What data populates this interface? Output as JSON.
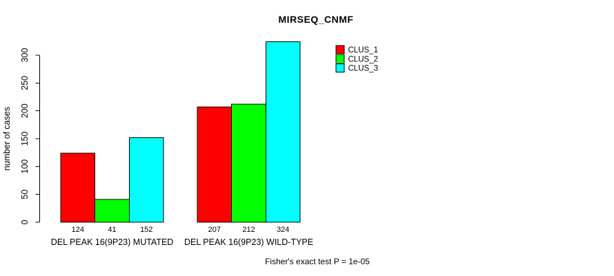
{
  "title": "MIRSEQ_CNMF",
  "chart_data": {
    "type": "bar",
    "title": "MIRSEQ_CNMF",
    "xlabel": "",
    "ylabel": "number of cases",
    "categories": [
      "DEL PEAK 16(9P23) MUTATED",
      "DEL PEAK 16(9P23) WILD-TYPE"
    ],
    "series": [
      {
        "name": "CLUS_1",
        "color": "#FF0000",
        "values": [
          124,
          207
        ]
      },
      {
        "name": "CLUS_2",
        "color": "#00FF00",
        "values": [
          41,
          212
        ]
      },
      {
        "name": "CLUS_3",
        "color": "#00FFFF",
        "values": [
          152,
          324
        ]
      }
    ],
    "bar_value_labels_shown": true,
    "yticks": [
      0,
      50,
      100,
      150,
      200,
      250,
      300
    ],
    "ylim": [
      0,
      300
    ],
    "grid": false,
    "legend_position": "top-right",
    "legend_entries": [
      "CLUS_1",
      "CLUS_2",
      "CLUS_3"
    ],
    "annotation": "Fisher's exact test P = 1e-05",
    "axis_color": "#000000",
    "bar_border_color": "#000000",
    "background_color": "#FFFFFF"
  }
}
